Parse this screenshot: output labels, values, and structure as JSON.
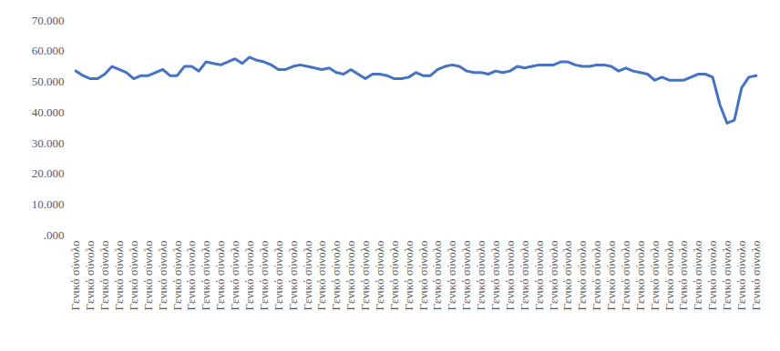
{
  "chart_data": {
    "type": "line",
    "categories": [
      "Γενικό σύνολο",
      null,
      "Γενικό σύνολο",
      null,
      "Γενικό σύνολο",
      null,
      "Γενικό σύνολο",
      null,
      "Γενικό σύνολο",
      null,
      "Γενικό σύνολο",
      null,
      "Γενικό σύνολο",
      null,
      "Γενικό σύνολο",
      null,
      "Γενικό σύνολο",
      null,
      "Γενικό σύνολο",
      null,
      "Γενικό σύνολο",
      null,
      "Γενικό σύνολο",
      null,
      "Γενικό σύνολο",
      null,
      "Γενικό σύνολο",
      null,
      "Γενικό σύνολο",
      null,
      "Γενικό σύνολο",
      null,
      "Γενικό σύνολο",
      null,
      "Γενικό σύνολο",
      null,
      "Γενικό σύνολο",
      null,
      "Γενικό σύνολο",
      null,
      "Γενικό σύνολο",
      null,
      "Γενικό σύνολο",
      null,
      "Γενικό σύνολο",
      null,
      "Γενικό σύνολο",
      null,
      "Γενικό σύνολο",
      null,
      "Γενικό σύνολο",
      null,
      "Γενικό σύνολο",
      null,
      "Γενικό σύνολο",
      null,
      "Γενικό σύνολο",
      null,
      "Γενικό σύνολο",
      null,
      "Γενικό σύνολο",
      null,
      "Γενικό σύνολο",
      null,
      "Γενικό σύνολο",
      null,
      "Γενικό σύνολο",
      null,
      "Γενικό σύνολο",
      null,
      "Γενικό σύνολο",
      null,
      "Γενικό σύνολο",
      null,
      "Γενικό σύνολο",
      null,
      "Γενικό σύνολο",
      null,
      "Γενικό σύνολο",
      null,
      "Γενικό σύνολο",
      null,
      "Γενικό σύνολο",
      null,
      "Γενικό σύνολο",
      null,
      "Γενικό σύνολο",
      null,
      "Γενικό σύνολο",
      null,
      "Γενικό σύνολο",
      null,
      "Γενικό σύνολο",
      null,
      "Γενικό σύνολο"
    ],
    "values": [
      53500,
      52000,
      51000,
      51000,
      52500,
      55000,
      54000,
      53000,
      51000,
      52000,
      52000,
      53000,
      54000,
      52000,
      52000,
      55000,
      55000,
      53500,
      56500,
      56000,
      55500,
      56500,
      57500,
      56000,
      58000,
      57000,
      56500,
      55500,
      54000,
      54000,
      55000,
      55500,
      55000,
      54500,
      54000,
      54500,
      53000,
      52500,
      54000,
      52500,
      51000,
      52500,
      52500,
      52000,
      51000,
      51000,
      51500,
      53000,
      52000,
      52000,
      54000,
      55000,
      55500,
      55000,
      53500,
      53000,
      53000,
      52500,
      53500,
      53000,
      53500,
      55000,
      54500,
      55000,
      55500,
      55500,
      55500,
      56500,
      56500,
      55500,
      55000,
      55000,
      55500,
      55500,
      55000,
      53500,
      54500,
      53500,
      53000,
      52500,
      50500,
      51500,
      50500,
      50500,
      50500,
      51500,
      52500,
      52500,
      51500,
      42500,
      36500,
      37500,
      48000,
      51500,
      52000
    ],
    "color": "#4472c4",
    "ylim": [
      0,
      70000
    ],
    "yticks": [
      {
        "value": 0,
        "label": ".000"
      },
      {
        "value": 10000,
        "label": "10.000"
      },
      {
        "value": 20000,
        "label": "20.000"
      },
      {
        "value": 30000,
        "label": "30.000"
      },
      {
        "value": 40000,
        "label": "40.000"
      },
      {
        "value": 50000,
        "label": "50.000"
      },
      {
        "value": 60000,
        "label": "60.000"
      },
      {
        "value": 70000,
        "label": "70.000"
      }
    ],
    "grid": false
  }
}
